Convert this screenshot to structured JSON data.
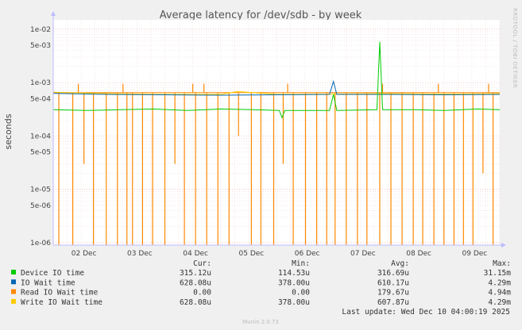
{
  "chart_data": {
    "type": "line",
    "title": "Average latency for /dev/sdb - by week",
    "ylabel": "seconds",
    "yscale": "log",
    "ylim": [
      9e-07,
      0.015
    ],
    "y_ticks": [
      {
        "value": 0.01,
        "label": "1e-02"
      },
      {
        "value": 0.005,
        "label": "5e-03"
      },
      {
        "value": 0.001,
        "label": "1e-03"
      },
      {
        "value": 0.0005,
        "label": "5e-04"
      },
      {
        "value": 0.0001,
        "label": "1e-04"
      },
      {
        "value": 5e-05,
        "label": "5e-05"
      },
      {
        "value": 1e-05,
        "label": "1e-05"
      },
      {
        "value": 5e-06,
        "label": "5e-06"
      },
      {
        "value": 1e-06,
        "label": "1e-06"
      }
    ],
    "xlim": [
      0,
      8.0
    ],
    "x_ticks": [
      {
        "value": 0.55,
        "label": "02 Dec"
      },
      {
        "value": 1.55,
        "label": "03 Dec"
      },
      {
        "value": 2.55,
        "label": "04 Dec"
      },
      {
        "value": 3.55,
        "label": "05 Dec"
      },
      {
        "value": 4.55,
        "label": "06 Dec"
      },
      {
        "value": 5.55,
        "label": "07 Dec"
      },
      {
        "value": 6.55,
        "label": "08 Dec"
      },
      {
        "value": 7.55,
        "label": "09 Dec"
      }
    ],
    "grid": true,
    "series": [
      {
        "name": "Read IO Wait time",
        "color": "#ff8800",
        "style": "spikes",
        "base": 0.00065,
        "drops": [
          {
            "x": 0.1,
            "y": 9e-07
          },
          {
            "x": 0.35,
            "y": 9e-07
          },
          {
            "x": 0.55,
            "y": 3e-05
          },
          {
            "x": 0.72,
            "y": 9e-07
          },
          {
            "x": 0.95,
            "y": 9e-07
          },
          {
            "x": 1.15,
            "y": 9e-07
          },
          {
            "x": 1.32,
            "y": 9e-07
          },
          {
            "x": 1.42,
            "y": 9e-07
          },
          {
            "x": 1.6,
            "y": 9e-07
          },
          {
            "x": 1.78,
            "y": 9e-07
          },
          {
            "x": 2.0,
            "y": 9e-07
          },
          {
            "x": 2.18,
            "y": 3e-05
          },
          {
            "x": 2.35,
            "y": 9e-07
          },
          {
            "x": 2.55,
            "y": 9e-07
          },
          {
            "x": 2.75,
            "y": 9e-07
          },
          {
            "x": 2.95,
            "y": 9e-07
          },
          {
            "x": 3.15,
            "y": 9e-07
          },
          {
            "x": 3.32,
            "y": 0.0001
          },
          {
            "x": 3.55,
            "y": 9e-07
          },
          {
            "x": 3.72,
            "y": 9e-07
          },
          {
            "x": 3.95,
            "y": 9e-07
          },
          {
            "x": 4.12,
            "y": 3e-05
          },
          {
            "x": 4.3,
            "y": 9e-07
          },
          {
            "x": 4.52,
            "y": 9e-07
          },
          {
            "x": 4.72,
            "y": 9e-07
          },
          {
            "x": 4.9,
            "y": 9e-07
          },
          {
            "x": 5.05,
            "y": 9e-07
          },
          {
            "x": 5.25,
            "y": 9e-07
          },
          {
            "x": 5.45,
            "y": 9e-07
          },
          {
            "x": 5.62,
            "y": 9e-07
          },
          {
            "x": 5.85,
            "y": 9e-07
          },
          {
            "x": 6.05,
            "y": 9e-07
          },
          {
            "x": 6.25,
            "y": 9e-07
          },
          {
            "x": 6.45,
            "y": 9e-07
          },
          {
            "x": 6.62,
            "y": 9e-07
          },
          {
            "x": 6.82,
            "y": 9e-07
          },
          {
            "x": 7.0,
            "y": 9e-07
          },
          {
            "x": 7.18,
            "y": 9e-07
          },
          {
            "x": 7.35,
            "y": 9e-07
          },
          {
            "x": 7.52,
            "y": 9e-07
          },
          {
            "x": 7.7,
            "y": 2e-05
          },
          {
            "x": 7.88,
            "y": 9e-07
          }
        ],
        "peaks": [
          {
            "x": 0.45,
            "y": 0.00095
          },
          {
            "x": 1.25,
            "y": 0.00095
          },
          {
            "x": 2.5,
            "y": 0.00095
          },
          {
            "x": 2.7,
            "y": 0.00095
          },
          {
            "x": 4.2,
            "y": 0.00095
          },
          {
            "x": 5.9,
            "y": 0.00095
          },
          {
            "x": 6.9,
            "y": 0.00095
          },
          {
            "x": 7.8,
            "y": 0.00095
          }
        ]
      },
      {
        "name": "Write IO Wait time",
        "color": "#ffcc00",
        "style": "line",
        "points": [
          {
            "x": 0.0,
            "y": 0.00066
          },
          {
            "x": 1.0,
            "y": 0.00062
          },
          {
            "x": 2.0,
            "y": 0.0006
          },
          {
            "x": 3.0,
            "y": 0.0006
          },
          {
            "x": 3.3,
            "y": 0.00068
          },
          {
            "x": 4.0,
            "y": 0.0006
          },
          {
            "x": 5.0,
            "y": 0.00061
          },
          {
            "x": 6.0,
            "y": 0.00062
          },
          {
            "x": 7.0,
            "y": 0.00061
          },
          {
            "x": 8.0,
            "y": 0.00062
          }
        ]
      },
      {
        "name": "IO Wait time",
        "color": "#0066b3",
        "style": "line",
        "points": [
          {
            "x": 0.0,
            "y": 0.00063
          },
          {
            "x": 1.0,
            "y": 0.0006
          },
          {
            "x": 2.0,
            "y": 0.00059
          },
          {
            "x": 3.0,
            "y": 0.00058
          },
          {
            "x": 4.0,
            "y": 0.00059
          },
          {
            "x": 4.95,
            "y": 0.0006
          },
          {
            "x": 5.02,
            "y": 0.00105
          },
          {
            "x": 5.08,
            "y": 0.0006
          },
          {
            "x": 6.0,
            "y": 0.0006
          },
          {
            "x": 7.0,
            "y": 0.00059
          },
          {
            "x": 8.0,
            "y": 0.0006
          }
        ]
      },
      {
        "name": "Device IO time",
        "color": "#00cc00",
        "style": "line",
        "points": [
          {
            "x": 0.0,
            "y": 0.00031
          },
          {
            "x": 0.6,
            "y": 0.0003
          },
          {
            "x": 1.2,
            "y": 0.00031
          },
          {
            "x": 1.8,
            "y": 0.00032
          },
          {
            "x": 2.4,
            "y": 0.0003
          },
          {
            "x": 3.0,
            "y": 0.00032
          },
          {
            "x": 3.6,
            "y": 0.00031
          },
          {
            "x": 4.05,
            "y": 0.0003
          },
          {
            "x": 4.1,
            "y": 0.00022
          },
          {
            "x": 4.15,
            "y": 0.0003
          },
          {
            "x": 4.95,
            "y": 0.0003
          },
          {
            "x": 5.02,
            "y": 0.0006
          },
          {
            "x": 5.08,
            "y": 0.0003
          },
          {
            "x": 5.8,
            "y": 0.00031
          },
          {
            "x": 5.85,
            "y": 0.0058
          },
          {
            "x": 5.9,
            "y": 0.00031
          },
          {
            "x": 6.5,
            "y": 0.00031
          },
          {
            "x": 7.0,
            "y": 0.0003
          },
          {
            "x": 7.6,
            "y": 0.00032
          },
          {
            "x": 8.0,
            "y": 0.00031
          }
        ]
      }
    ],
    "legend": {
      "headers": [
        "Cur:",
        "Min:",
        "Avg:",
        "Max:"
      ],
      "rows": [
        {
          "name": "Device IO time",
          "color": "#00cc00",
          "cur": "315.12u",
          "min": "114.53u",
          "avg": "316.69u",
          "max": "31.15m"
        },
        {
          "name": "IO Wait time",
          "color": "#0066b3",
          "cur": "628.08u",
          "min": "378.00u",
          "avg": "610.17u",
          "max": "4.29m"
        },
        {
          "name": "Read IO Wait time",
          "color": "#ff8800",
          "cur": "0.00",
          "min": "0.00",
          "avg": "179.67u",
          "max": "4.94m"
        },
        {
          "name": "Write IO Wait time",
          "color": "#ffcc00",
          "cur": "628.08u",
          "min": "378.00u",
          "avg": "607.87u",
          "max": "4.29m"
        }
      ]
    },
    "last_update": "Last update: Wed Dec 10 04:00:19 2025",
    "side_label": "RRDTOOL / TOBI OETIKER",
    "footer": "Munin 2.0.73"
  }
}
